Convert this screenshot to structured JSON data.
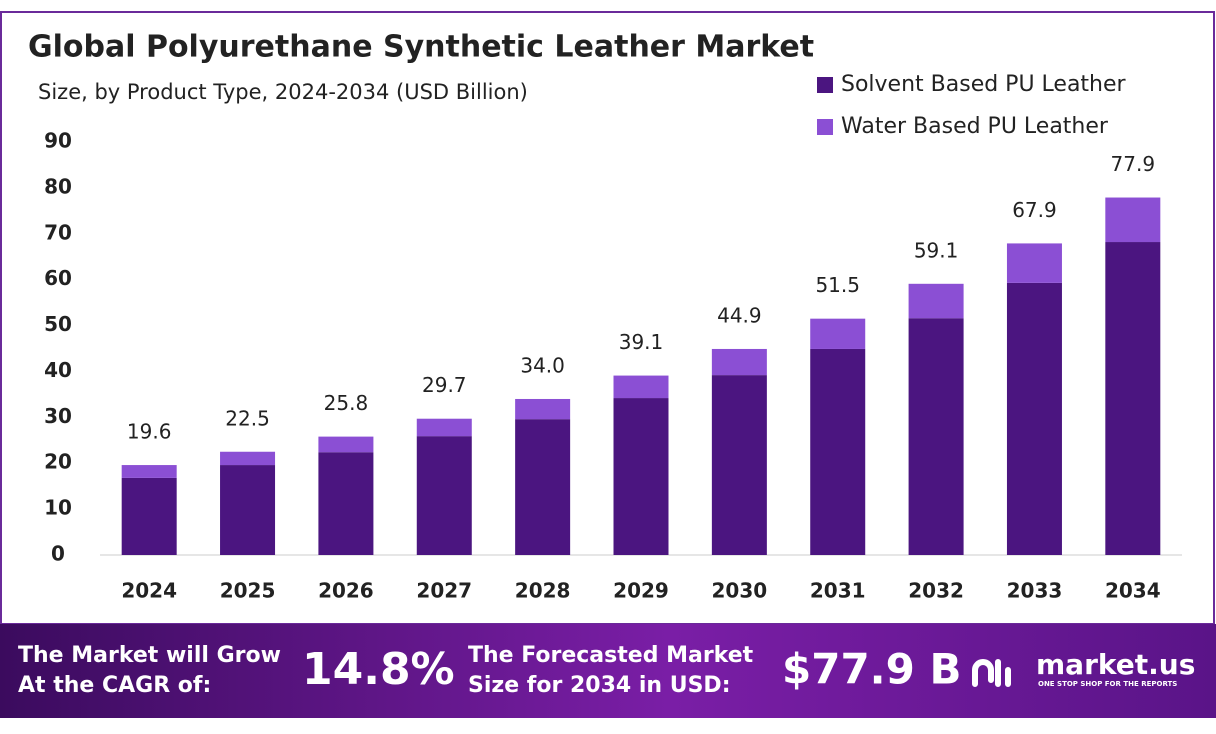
{
  "chart_data": {
    "type": "stacked_bar",
    "title": "Global Polyurethane Synthetic Leather Market",
    "subtitle": "Size, by Product Type, 2024-2034 (USD Billion)",
    "categories": [
      "2024",
      "2025",
      "2026",
      "2027",
      "2028",
      "2029",
      "2030",
      "2031",
      "2032",
      "2033",
      "2034"
    ],
    "series": [
      {
        "name": "Solvent Based PU Leather",
        "color": "#4b1580",
        "values": [
          16.8,
          19.6,
          22.4,
          25.9,
          29.6,
          34.2,
          39.2,
          44.9,
          51.6,
          59.3,
          68.2
        ]
      },
      {
        "name": "Water Based PU Leather",
        "color": "#8b4fd4",
        "values": [
          2.8,
          2.9,
          3.4,
          3.8,
          4.4,
          4.9,
          5.7,
          6.6,
          7.5,
          8.6,
          9.7
        ]
      }
    ],
    "totals": [
      19.6,
      22.5,
      25.8,
      29.7,
      34.0,
      39.1,
      44.9,
      51.5,
      59.1,
      67.9,
      77.9
    ],
    "value_labels": [
      "19.6",
      "22.5",
      "25.8",
      "29.7",
      "34.0",
      "39.1",
      "44.9",
      "51.5",
      "59.1",
      "67.9",
      "77.9"
    ],
    "ylim": [
      0,
      90
    ],
    "yticks": [
      0,
      10,
      20,
      30,
      40,
      50,
      60,
      70,
      80,
      90
    ],
    "grid": false,
    "legend": "top-right"
  },
  "footer": {
    "cagr_label": [
      "The Market will Grow",
      "At the CAGR of:"
    ],
    "cagr": "14.8%",
    "forecast_label": [
      "The Forecasted Market",
      "Size for 2034 in USD:"
    ],
    "forecast": "$77.9 B",
    "brand": "market.us",
    "tagline": "ONE STOP SHOP FOR THE REPORTS"
  }
}
